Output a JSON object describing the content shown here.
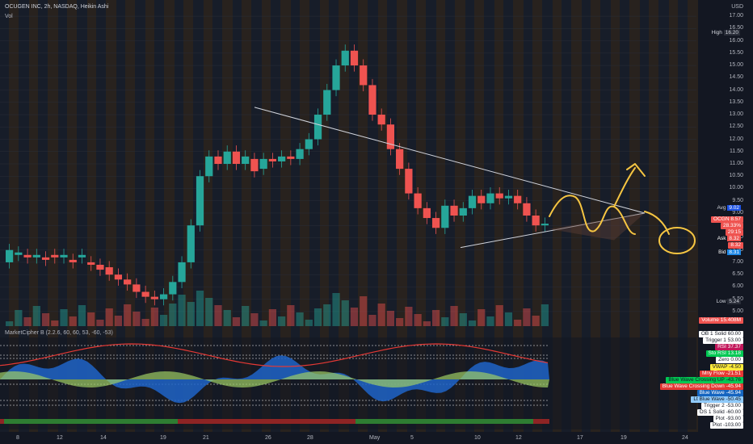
{
  "header": {
    "title": "OCUGEN INC, 2h, NASDAQ, Heikin Ashi",
    "vol_label": "Vol",
    "currency": "USD",
    "indicator_title": "MarketCipher B (2.2.6, 60, 60, 53, -60, -53)"
  },
  "price_axis": {
    "ticks": [
      "17.00",
      "16.50",
      "16.00",
      "15.50",
      "15.00",
      "14.50",
      "14.00",
      "13.50",
      "13.00",
      "12.50",
      "12.00",
      "11.50",
      "11.00",
      "10.50",
      "10.00",
      "9.50",
      "9.00",
      "8.50",
      "8.00",
      "7.50",
      "7.00",
      "6.50",
      "6.00",
      "5.50",
      "5.00"
    ],
    "high": {
      "label": "High",
      "value": "16.20"
    },
    "low": {
      "label": "Low",
      "value": "5.24"
    },
    "avg": {
      "label": "Avg",
      "value": "9.02"
    },
    "symbol": {
      "label": "OCGN",
      "value": "8.57",
      "extra1": "28.33%",
      "extra2": "29:15"
    },
    "ask": {
      "label": "Ask",
      "value": "8.32"
    },
    "ask2": {
      "value": "8.32"
    },
    "bid": {
      "label": "Bid",
      "value": "8.31"
    },
    "volume": {
      "label": "Volume",
      "value": "15.408M"
    }
  },
  "time_axis": [
    "8",
    "12",
    "14",
    "19",
    "21",
    "26",
    "28",
    "May",
    "5",
    "10",
    "12",
    "17",
    "19",
    "24"
  ],
  "indicator_legend": [
    {
      "label": "OB 1 Solid",
      "value": "60.00",
      "bg": "#ffffff",
      "fg": "#131722"
    },
    {
      "label": "Trigger 1",
      "value": "53.00",
      "bg": "#ffffff",
      "fg": "#131722"
    },
    {
      "label": "RSI",
      "value": "37.37",
      "bg": "#c2185b",
      "fg": "#ffffff"
    },
    {
      "label": "Sto RSI",
      "value": "13.18",
      "bg": "#00c853",
      "fg": "#ffffff"
    },
    {
      "label": "Zero",
      "value": "0.00",
      "bg": "#ffffff",
      "fg": "#131722"
    },
    {
      "label": "VWAP",
      "value": "-4.50",
      "bg": "#ffeb3b",
      "fg": "#131722"
    },
    {
      "label": "Mny Flow",
      "value": "-21.51",
      "bg": "#e53935",
      "fg": "#ffffff"
    },
    {
      "label": "Blue Wave Crossing UP",
      "value": "-43.76",
      "bg": "#00c853",
      "fg": "#131722"
    },
    {
      "label": "Blue Wave Crossing Down",
      "value": "-45.94",
      "bg": "#e53935",
      "fg": "#ffffff"
    },
    {
      "label": "Blue Wave",
      "value": "-45.94",
      "bg": "#1565c0",
      "fg": "#ffffff"
    },
    {
      "label": "Lt Blue Wave",
      "value": "-50.45",
      "bg": "#90caf9",
      "fg": "#131722"
    },
    {
      "label": "Trigger 2",
      "value": "-53.00",
      "bg": "#ffffff",
      "fg": "#131722"
    },
    {
      "label": "OS 1 Solid",
      "value": "-60.00",
      "bg": "#ffffff",
      "fg": "#131722"
    },
    {
      "label": "Plot",
      "value": "-93.00",
      "bg": "#ffffff",
      "fg": "#131722"
    },
    {
      "label": "Plot",
      "value": "-103.00",
      "bg": "#ffffff",
      "fg": "#131722"
    }
  ],
  "colors": {
    "background": "#131722",
    "up": "#26a69a",
    "down": "#ef5350",
    "trendline": "#e0e0e0",
    "annotation": "#f5c542"
  },
  "chart_data": {
    "type": "candlestick",
    "title": "OCUGEN INC, 2h, NASDAQ, Heikin Ashi",
    "y_range": [
      4.8,
      17.2
    ],
    "y_unit": "USD",
    "points": [
      [
        7.0,
        7.5
      ],
      [
        7.3,
        7.4
      ],
      [
        7.3,
        7.2
      ],
      [
        7.2,
        7.3
      ],
      [
        7.2,
        7.1
      ],
      [
        7.3,
        7.2
      ],
      [
        7.2,
        7.3
      ],
      [
        7.1,
        7.0
      ],
      [
        7.2,
        7.3
      ],
      [
        7.0,
        6.9
      ],
      [
        6.9,
        6.7
      ],
      [
        6.8,
        6.5
      ],
      [
        6.5,
        6.3
      ],
      [
        6.3,
        6.1
      ],
      [
        6.1,
        5.8
      ],
      [
        5.8,
        5.6
      ],
      [
        5.6,
        5.5
      ],
      [
        5.5,
        5.7
      ],
      [
        5.7,
        6.2
      ],
      [
        6.2,
        7.0
      ],
      [
        7.0,
        8.5
      ],
      [
        8.5,
        10.5
      ],
      [
        10.5,
        11.3
      ],
      [
        11.3,
        11.0
      ],
      [
        11.0,
        11.5
      ],
      [
        11.5,
        11.0
      ],
      [
        11.0,
        11.3
      ],
      [
        11.2,
        10.7
      ],
      [
        10.8,
        11.2
      ],
      [
        11.2,
        11.1
      ],
      [
        11.1,
        11.3
      ],
      [
        11.3,
        11.2
      ],
      [
        11.2,
        11.6
      ],
      [
        11.6,
        12.0
      ],
      [
        12.0,
        13.0
      ],
      [
        13.0,
        14.0
      ],
      [
        14.0,
        15.0
      ],
      [
        15.0,
        15.6
      ],
      [
        15.6,
        15.0
      ],
      [
        15.0,
        14.2
      ],
      [
        14.2,
        13.0
      ],
      [
        13.0,
        12.6
      ],
      [
        12.6,
        11.6
      ],
      [
        11.6,
        10.8
      ],
      [
        10.8,
        9.8
      ],
      [
        9.8,
        9.2
      ],
      [
        9.2,
        8.8
      ],
      [
        8.8,
        8.4
      ],
      [
        8.4,
        9.3
      ],
      [
        9.3,
        8.9
      ],
      [
        8.9,
        9.2
      ],
      [
        9.2,
        9.7
      ],
      [
        9.7,
        9.4
      ],
      [
        9.4,
        9.8
      ],
      [
        9.8,
        9.6
      ],
      [
        9.6,
        9.7
      ],
      [
        9.7,
        9.4
      ],
      [
        9.4,
        8.9
      ],
      [
        8.9,
        8.5
      ],
      [
        8.5,
        8.57
      ]
    ],
    "trendlines": [
      {
        "from": [
          "Apr 24",
          13.3
        ],
        "to": [
          "May 19",
          9.0
        ]
      },
      {
        "from": [
          "May 9",
          7.6
        ],
        "to": [
          "May 19",
          9.0
        ]
      }
    ]
  }
}
